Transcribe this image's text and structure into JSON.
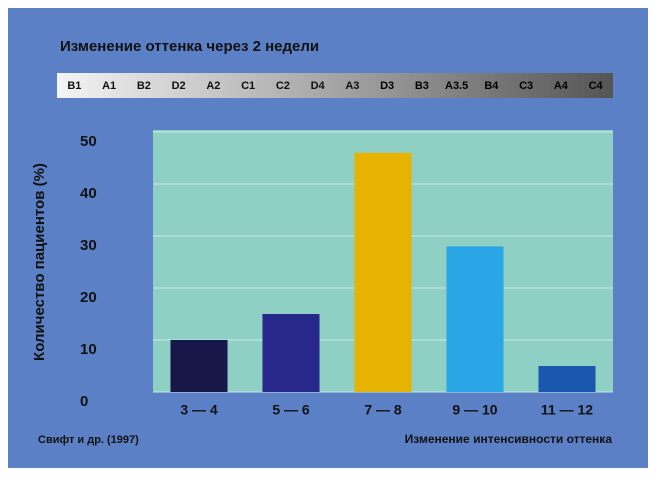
{
  "chart_data": {
    "type": "bar",
    "title": "Изменение оттенка через 2 недели",
    "shade_guide": [
      "B1",
      "A1",
      "B2",
      "D2",
      "A2",
      "C1",
      "C2",
      "D4",
      "A3",
      "D3",
      "B3",
      "A3.5",
      "B4",
      "C3",
      "A4",
      "C4"
    ],
    "y_label": "Количество пациентов (%)",
    "x_label": "Изменение интенсивности оттенка",
    "source": "Свифт и др. (1997)",
    "categories": [
      "3 — 4",
      "5 — 6",
      "7 — 8",
      "9 — 10",
      "11 — 12"
    ],
    "values": [
      10,
      15,
      46,
      28,
      5
    ],
    "colors": [
      "#17174a",
      "#28288a",
      "#e6b400",
      "#2aa6e6",
      "#1a58b0"
    ],
    "ylim": [
      0,
      50
    ],
    "yticks": [
      0,
      10,
      20,
      30,
      40,
      50
    ],
    "grid": true
  }
}
